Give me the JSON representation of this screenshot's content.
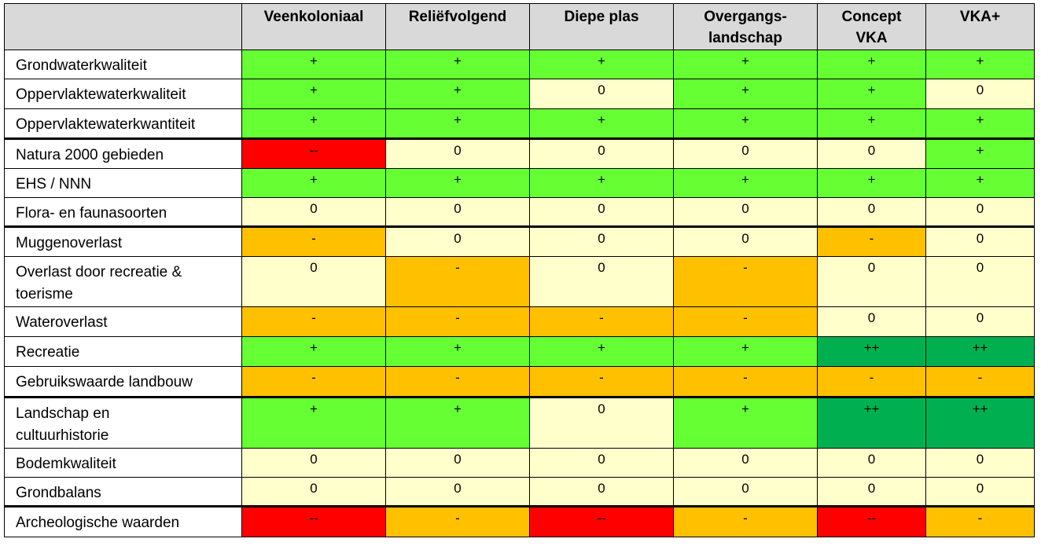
{
  "colors": {
    "pos": "#66ff33",
    "neutral": "#ffffcc",
    "neg": "#ffc000",
    "very_neg": "#ff0000",
    "very_pos": "#00b050",
    "header_bg": "#d9d9d9"
  },
  "columns": [
    "Veenkoloniaal",
    "Reliëfvolgend",
    "Diepe plas",
    "Overgangs-\nlandschap",
    "Concept\nVKA",
    "VKA+"
  ],
  "rows": [
    {
      "label": "Grondwaterkwaliteit",
      "values": [
        "+",
        "+",
        "+",
        "+",
        "+",
        "+"
      ]
    },
    {
      "label": "Oppervlaktewaterkwaliteit",
      "values": [
        "+",
        "+",
        "0",
        "+",
        "+",
        "0"
      ]
    },
    {
      "label": "Oppervlaktewaterkwantiteit",
      "values": [
        "+",
        "+",
        "+",
        "+",
        "+",
        "+"
      ]
    },
    {
      "label": "Natura 2000 gebieden",
      "values": [
        "--",
        "0",
        "0",
        "0",
        "0",
        "+"
      ]
    },
    {
      "label": "EHS / NNN",
      "values": [
        "+",
        "+",
        "+",
        "+",
        "+",
        "+"
      ]
    },
    {
      "label": "Flora- en faunasoorten",
      "values": [
        "0",
        "0",
        "0",
        "0",
        "0",
        "0"
      ]
    },
    {
      "label": "Muggenoverlast",
      "values": [
        "-",
        "0",
        "0",
        "0",
        "-",
        "0"
      ]
    },
    {
      "label": "Overlast door recreatie &\ntoerisme",
      "values": [
        "0",
        "-",
        "0",
        "-",
        "0",
        "0"
      ]
    },
    {
      "label": "Wateroverlast",
      "values": [
        "-",
        "-",
        "-",
        "-",
        "0",
        "0"
      ]
    },
    {
      "label": "Recreatie",
      "values": [
        "+",
        "+",
        "+",
        "+",
        "++",
        "++"
      ]
    },
    {
      "label": "Gebruikswaarde landbouw",
      "values": [
        "-",
        "-",
        "-",
        "-",
        "-",
        "-"
      ]
    },
    {
      "label": "Landschap en\ncultuurhistorie",
      "values": [
        "+",
        "+",
        "0",
        "+",
        "++",
        "++"
      ]
    },
    {
      "label": "Bodemkwaliteit",
      "values": [
        "0",
        "0",
        "0",
        "0",
        "0",
        "0"
      ]
    },
    {
      "label": "Grondbalans",
      "values": [
        "0",
        "0",
        "0",
        "0",
        "0",
        "0"
      ]
    },
    {
      "label": "Archeologische waarden",
      "values": [
        "--",
        "-",
        "--",
        "-",
        "--",
        "-"
      ]
    }
  ]
}
